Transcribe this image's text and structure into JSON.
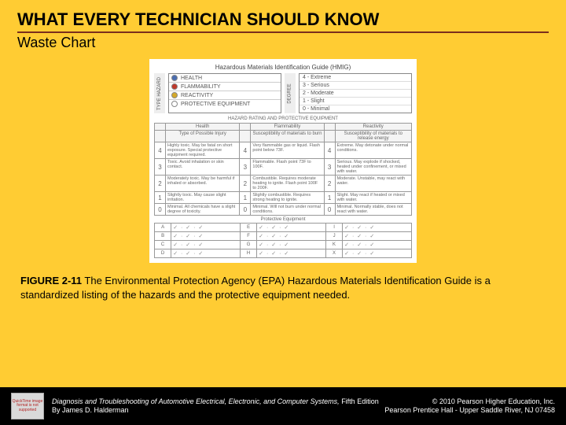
{
  "title": "WHAT EVERY TECHNICIAN SHOULD KNOW",
  "subtitle": "Waste Chart",
  "chart_header": "Hazardous Materials Identification Guide (HMIG)",
  "type_hazard_label": "TYPE HAZARD",
  "degree_label": "DEGREE",
  "hazard_types": [
    "HEALTH",
    "FLAMMABILITY",
    "REACTIVITY",
    "PROTECTIVE EQUIPMENT"
  ],
  "hazard_type_colors": [
    "#4a6db0",
    "#c0392b",
    "#d4a92a",
    "#ffffff"
  ],
  "degree_scale": [
    "4 - Extreme",
    "3 - Serious",
    "2 - Moderate",
    "1 - Slight",
    "0 - Minimal"
  ],
  "mid_heading": "HAZARD RATING AND PROTECTIVE EQUIPMENT",
  "hazard_columns": [
    "Health",
    "Flammability",
    "Reactivity"
  ],
  "hazard_sub": [
    "Type of Possible Injury",
    "Susceptibility of materials to burn",
    "Susceptibility of materials to release energy"
  ],
  "hazard_rows": [
    {
      "n": "4",
      "cells": [
        "Highly toxic. May be fatal on short exposure. Special protective equipment required.",
        "Very flammable gas or liquid. Flash point below 73F.",
        "Extreme. May detonate under normal conditions."
      ]
    },
    {
      "n": "3",
      "cells": [
        "Toxic. Avoid inhalation or skin contact.",
        "Flammable. Flash point 73F to 100F.",
        "Serious. May explode if shocked, heated under confinement, or mixed with water."
      ]
    },
    {
      "n": "2",
      "cells": [
        "Moderately toxic. May be harmful if inhaled or absorbed.",
        "Combustible. Requires moderate heating to ignite. Flash point 100F to 200F.",
        "Moderate. Unstable, may react with water."
      ]
    },
    {
      "n": "1",
      "cells": [
        "Slightly toxic. May cause slight irritation.",
        "Slightly combustible. Requires strong heating to ignite.",
        "Slight. May react if heated or mixed with water."
      ]
    },
    {
      "n": "0",
      "cells": [
        "Minimal. All chemicals have a slight degree of toxicity.",
        "Minimal. Will not burn under normal conditions.",
        "Minimal. Normally stable, does not react with water."
      ]
    }
  ],
  "protective_heading": "Protective Equipment",
  "protective_rows": [
    [
      "A",
      "E",
      "I"
    ],
    [
      "B",
      "F",
      "J"
    ],
    [
      "C",
      "G",
      "K"
    ],
    [
      "D",
      "H",
      "X"
    ]
  ],
  "protective_symbol": "✓ · ✓ · ✓",
  "caption_fig": "FIGURE 2-11",
  "caption_text": " The Environmental Protection Agency (EPA) Hazardous Materials Identification Guide is a standardized listing of the hazards and the protective equipment needed.",
  "qt_badge": "QuickTime image format is not supported",
  "book_title": "Diagnosis and Troubleshooting of Automotive Electrical, Electronic, and Computer Systems,",
  "book_edition": " Fifth Edition",
  "book_author": "By James D. Halderman",
  "copyright": "© 2010 Pearson Higher Education, Inc.",
  "publisher": "Pearson Prentice Hall - Upper Saddle River, NJ 07458"
}
